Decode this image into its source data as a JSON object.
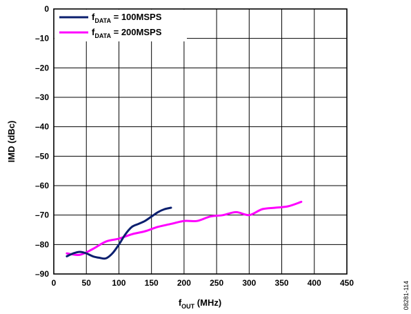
{
  "chart_data": {
    "type": "line",
    "xlabel": {
      "main": "f",
      "sub": "OUT",
      "rest": " (MHz)"
    },
    "ylabel": "IMD (dBc)",
    "xlim": [
      0,
      450
    ],
    "ylim": [
      -90,
      0
    ],
    "xticks": [
      0,
      50,
      100,
      150,
      200,
      250,
      300,
      350,
      400,
      450
    ],
    "yticks": [
      0,
      -10,
      -20,
      -30,
      -40,
      -50,
      -60,
      -70,
      -80,
      -90
    ],
    "xtick_labels": [
      "0",
      "50",
      "100",
      "150",
      "200",
      "250",
      "300",
      "350",
      "400",
      "450"
    ],
    "ytick_labels": [
      "0",
      "–10",
      "–20",
      "–30",
      "–40",
      "–50",
      "–60",
      "–70",
      "–80",
      "–90"
    ],
    "grid": true,
    "legend_position": "top-left",
    "series": [
      {
        "name": {
          "main": "f",
          "sub": "DATA",
          "rest": " = 100MSPS"
        },
        "color": "#0b1f6e",
        "x": [
          20,
          30,
          40,
          50,
          60,
          70,
          80,
          90,
          100,
          110,
          120,
          130,
          140,
          150,
          160,
          170,
          180
        ],
        "y": [
          -84,
          -83,
          -82.5,
          -83,
          -84,
          -84.5,
          -84.7,
          -83,
          -80,
          -76.5,
          -74,
          -73,
          -72,
          -70.5,
          -69,
          -68,
          -67.5
        ]
      },
      {
        "name": {
          "main": "f",
          "sub": "DATA",
          "rest": " = 200MSPS"
        },
        "color": "#ff00ff",
        "x": [
          20,
          40,
          60,
          80,
          100,
          120,
          140,
          160,
          180,
          200,
          220,
          240,
          260,
          280,
          300,
          320,
          340,
          360,
          380
        ],
        "y": [
          -83,
          -83.5,
          -81.5,
          -79,
          -78,
          -76.5,
          -75.5,
          -74,
          -73,
          -72,
          -72,
          -70.5,
          -70,
          -69,
          -70,
          -68,
          -67.5,
          -67,
          -65.5
        ]
      }
    ],
    "figure_id": "08281-114"
  }
}
